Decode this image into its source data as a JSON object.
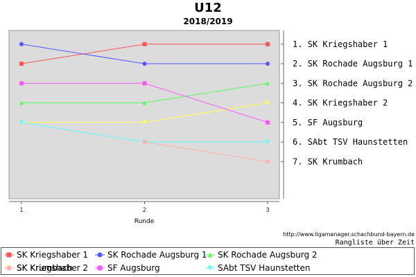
{
  "chart_data": {
    "type": "line",
    "title": "U12",
    "subtitle": "2018/2019",
    "xlabel": "Runde",
    "x": [
      1,
      2,
      3
    ],
    "y_reversed": true,
    "ylim": [
      0.3,
      8.9
    ],
    "grid": false,
    "series": [
      {
        "name": "SK Kriegshaber 1",
        "values": [
          2,
          1,
          1
        ],
        "color": "#ff5555",
        "marker": "square"
      },
      {
        "name": "SK Rochade Augsburg 1",
        "values": [
          1,
          2,
          2
        ],
        "color": "#5555ff",
        "marker": "circle"
      },
      {
        "name": "SK Rochade Augsburg 2",
        "values": [
          4,
          4,
          3
        ],
        "color": "#55ff55",
        "marker": "triangle-up"
      },
      {
        "name": "SK Kriegshaber 2",
        "values": [
          5,
          5,
          4
        ],
        "color": "#ffff55",
        "marker": "triangle-down"
      },
      {
        "name": "SF Augsburg",
        "values": [
          3,
          3,
          5
        ],
        "color": "#ff55ff",
        "marker": "square"
      },
      {
        "name": "SAbt TSV Haunstetten",
        "values": [
          5,
          6,
          6
        ],
        "color": "#55ffff",
        "marker": "triangle-down"
      },
      {
        "name": "SK Krumbach",
        "values": [
          null,
          6,
          7
        ],
        "color": "#ffafaf",
        "marker": "circle"
      }
    ],
    "rank_labels": [
      "1. SK Kriegshaber 1",
      "2. SK Rochade Augsburg 1",
      "3. SK Rochade Augsburg 2",
      "4. SK Kriegshaber 2",
      "5. SF Augsburg",
      "6. SAbt TSV Haunstetten",
      "7. SK Krumbach"
    ],
    "legend_position": "bottom"
  },
  "source_text": "http://www.ligamanager.schachbund-bayern.de",
  "caption_text": "Rangliste über Zeit"
}
